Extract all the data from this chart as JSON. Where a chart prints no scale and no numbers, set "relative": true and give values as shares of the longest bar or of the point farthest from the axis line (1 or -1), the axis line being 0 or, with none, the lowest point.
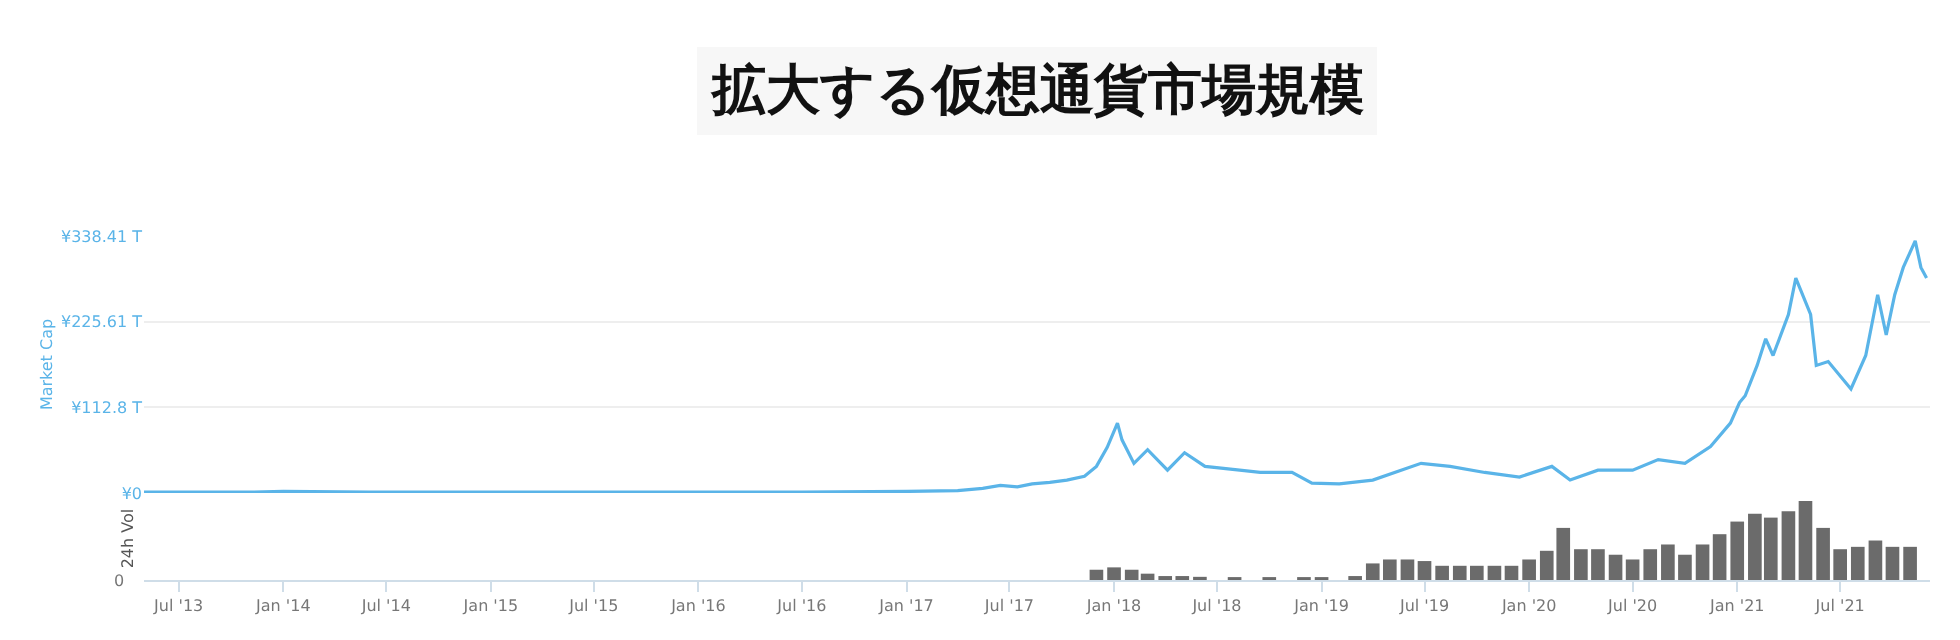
{
  "chart_data": [
    {
      "type": "line",
      "title": "拡大する仮想通貨市場規模",
      "ylabel": "Market Cap",
      "color": "#5ab4e8",
      "grid": "y",
      "tick_labels": "y",
      "x": [
        "2013-05-01",
        "2013-11-01",
        "2014-01-01",
        "2014-06-01",
        "2015-01-01",
        "2015-07-01",
        "2016-01-01",
        "2016-07-01",
        "2017-01-01",
        "2017-04-01",
        "2017-05-15",
        "2017-06-15",
        "2017-07-15",
        "2017-08-10",
        "2017-09-10",
        "2017-10-10",
        "2017-11-10",
        "2017-12-01",
        "2017-12-20",
        "2018-01-07",
        "2018-01-15",
        "2018-02-05",
        "2018-03-01",
        "2018-04-05",
        "2018-05-05",
        "2018-06-10",
        "2018-08-10",
        "2018-09-15",
        "2018-11-10",
        "2018-12-15",
        "2019-02-01",
        "2019-04-01",
        "2019-06-25",
        "2019-08-15",
        "2019-10-15",
        "2019-12-15",
        "2020-02-10",
        "2020-03-13",
        "2020-05-01",
        "2020-07-01",
        "2020-08-15",
        "2020-10-01",
        "2020-11-15",
        "2020-12-20",
        "2021-01-05",
        "2021-01-15",
        "2021-02-05",
        "2021-02-20",
        "2021-03-05",
        "2021-04-01",
        "2021-04-14",
        "2021-05-10",
        "2021-05-20",
        "2021-06-10",
        "2021-07-20",
        "2021-08-15",
        "2021-09-05",
        "2021-09-20",
        "2021-10-05",
        "2021-10-20",
        "2021-11-10",
        "2021-11-20",
        "2021-11-30"
      ],
      "values": [
        1,
        1,
        2,
        1,
        1,
        1,
        1,
        1,
        2,
        3,
        6,
        10,
        8,
        12,
        14,
        17,
        22,
        35,
        60,
        92,
        70,
        39,
        57,
        30,
        53,
        35,
        30,
        27,
        27,
        13,
        12,
        17,
        39,
        35,
        27,
        21,
        35,
        17,
        30,
        30,
        44,
        39,
        61,
        92,
        119,
        128,
        168,
        203,
        181,
        235,
        283,
        235,
        168,
        173,
        137,
        181,
        261,
        208,
        261,
        297,
        332,
        297,
        283
      ],
      "xlim": [
        "2013-05-01",
        "2021-12-06"
      ],
      "ylim": [
        0,
        338.41
      ],
      "yticks": [
        {
          "value": 0,
          "label": "¥0"
        },
        {
          "value": 112.8,
          "label": "¥112.8 T"
        },
        {
          "value": 225.61,
          "label": "¥225.61 T"
        },
        {
          "value": 338.41,
          "label": "¥338.41 T"
        }
      ]
    },
    {
      "type": "bar",
      "relative": true,
      "ylabel": "24h Vol",
      "color": "#6b6b6b",
      "tick_labels": "x",
      "annotations": [
        "0"
      ],
      "x": [
        "2017-12-01",
        "2018-01-01",
        "2018-02-01",
        "2018-03-01",
        "2018-04-01",
        "2018-05-01",
        "2018-06-01",
        "2018-08-01",
        "2018-10-01",
        "2018-12-01",
        "2019-01-01",
        "2019-03-01",
        "2019-04-01",
        "2019-05-01",
        "2019-06-01",
        "2019-07-01",
        "2019-08-01",
        "2019-09-01",
        "2019-10-01",
        "2019-11-01",
        "2019-12-01",
        "2020-01-01",
        "2020-02-01",
        "2020-03-01",
        "2020-04-01",
        "2020-05-01",
        "2020-06-01",
        "2020-07-01",
        "2020-08-01",
        "2020-09-01",
        "2020-10-01",
        "2020-11-01",
        "2020-12-01",
        "2021-01-01",
        "2021-02-01",
        "2021-03-01",
        "2021-04-01",
        "2021-05-01",
        "2021-06-01",
        "2021-07-01",
        "2021-08-01",
        "2021-09-01",
        "2021-10-01",
        "2021-11-01"
      ],
      "values": [
        0.13,
        0.16,
        0.13,
        0.08,
        0.05,
        0.05,
        0.04,
        0.03,
        0.03,
        0.03,
        0.03,
        0.05,
        0.21,
        0.26,
        0.26,
        0.24,
        0.18,
        0.18,
        0.18,
        0.18,
        0.18,
        0.26,
        0.37,
        0.66,
        0.39,
        0.39,
        0.32,
        0.26,
        0.39,
        0.45,
        0.32,
        0.45,
        0.58,
        0.74,
        0.84,
        0.79,
        0.87,
        1,
        0.66,
        0.39,
        0.42,
        0.5,
        0.42,
        0.42
      ],
      "xlim": [
        "2013-05-01",
        "2021-12-06"
      ],
      "xticks": [
        {
          "value": "2013-07-01",
          "label": "Jul '13"
        },
        {
          "value": "2014-01-01",
          "label": "Jan '14"
        },
        {
          "value": "2014-07-01",
          "label": "Jul '14"
        },
        {
          "value": "2015-01-01",
          "label": "Jan '15"
        },
        {
          "value": "2015-07-01",
          "label": "Jul '15"
        },
        {
          "value": "2016-01-01",
          "label": "Jan '16"
        },
        {
          "value": "2016-07-01",
          "label": "Jul '16"
        },
        {
          "value": "2017-01-01",
          "label": "Jan '17"
        },
        {
          "value": "2017-07-01",
          "label": "Jul '17"
        },
        {
          "value": "2018-01-01",
          "label": "Jan '18"
        },
        {
          "value": "2018-07-01",
          "label": "Jul '18"
        },
        {
          "value": "2019-01-01",
          "label": "Jan '19"
        },
        {
          "value": "2019-07-01",
          "label": "Jul '19"
        },
        {
          "value": "2020-01-01",
          "label": "Jan '20"
        },
        {
          "value": "2020-07-01",
          "label": "Jul '20"
        },
        {
          "value": "2021-01-01",
          "label": "Jan '21"
        },
        {
          "value": "2021-07-01",
          "label": "Jul '21"
        }
      ]
    }
  ]
}
